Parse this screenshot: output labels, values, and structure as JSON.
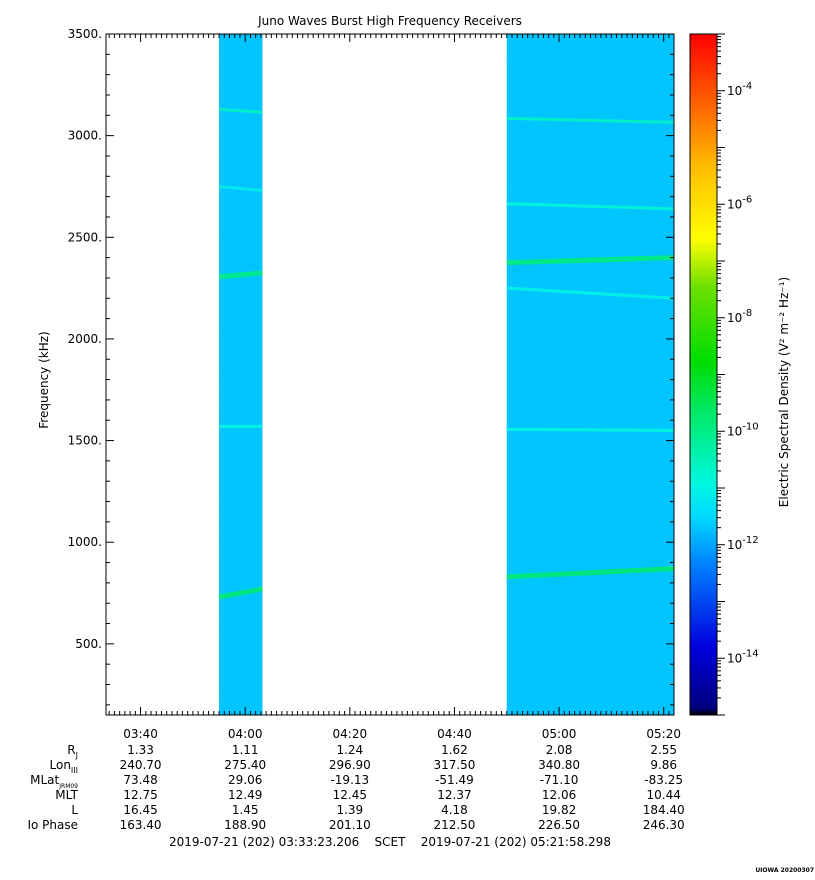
{
  "chart_data": {
    "type": "heatmap",
    "title": "Juno Waves Burst High Frequency Receivers",
    "ylabel": "Frequency (kHz)",
    "colorbar_label": "Electric Spectral Density (V² m⁻² Hz⁻¹)",
    "ylim": [
      150,
      3500
    ],
    "y_ticks": [
      500,
      1000,
      1500,
      2000,
      2500,
      3000,
      3500
    ],
    "y_tick_labels": [
      "500.",
      "1000.",
      "1500.",
      "2000.",
      "2500.",
      "3000.",
      "3500."
    ],
    "x_range_minutes": [
      213.39,
      321.97
    ],
    "x_ticks": [
      {
        "minute": 220,
        "label": "03:40"
      },
      {
        "minute": 240,
        "label": "04:00"
      },
      {
        "minute": 260,
        "label": "04:20"
      },
      {
        "minute": 280,
        "label": "04:40"
      },
      {
        "minute": 300,
        "label": "05:00"
      },
      {
        "minute": 320,
        "label": "05:20"
      }
    ],
    "colorbar": {
      "log10_min": -15,
      "log10_max": -3,
      "major_ticks": [
        -14,
        -12,
        -10,
        -8,
        -6,
        -4
      ],
      "tick_labels": [
        "10-14",
        "10-12",
        "10-10",
        "10-8",
        "10-6",
        "10-4"
      ]
    },
    "data_intervals": [
      {
        "start": "03:55",
        "end": "04:03",
        "start_min": 235.0,
        "end_min": 243.3
      },
      {
        "start": "04:50",
        "end": "05:21",
        "start_min": 290.0,
        "end_min": 321.9
      }
    ],
    "background_log10": -11.7,
    "emission_lines": [
      {
        "interval": 0,
        "f_start": 3130,
        "f_end": 3115,
        "log10": -10.6
      },
      {
        "interval": 0,
        "f_start": 2750,
        "f_end": 2730,
        "log10": -11.1
      },
      {
        "interval": 0,
        "f_start": 2305,
        "f_end": 2325,
        "log10": -10.0
      },
      {
        "interval": 0,
        "f_start": 1570,
        "f_end": 1570,
        "log10": -10.9
      },
      {
        "interval": 0,
        "f_start": 730,
        "f_end": 770,
        "log10": -9.8
      },
      {
        "interval": 1,
        "f_start": 3085,
        "f_end": 3065,
        "log10": -10.6
      },
      {
        "interval": 1,
        "f_start": 2665,
        "f_end": 2640,
        "log10": -10.8
      },
      {
        "interval": 1,
        "f_start": 2375,
        "f_end": 2400,
        "log10": -9.9
      },
      {
        "interval": 1,
        "f_start": 2250,
        "f_end": 2200,
        "log10": -11.0
      },
      {
        "interval": 1,
        "f_start": 1555,
        "f_end": 1550,
        "log10": -10.9
      },
      {
        "interval": 1,
        "f_start": 830,
        "f_end": 870,
        "log10": -9.8
      }
    ],
    "ephemeris": {
      "labels": [
        "R",
        "Lon",
        "MLat",
        "MLT",
        "L",
        "Io Phase"
      ],
      "subscripts": [
        "J",
        "III",
        "JRM09",
        "",
        "",
        ""
      ],
      "rows": [
        [
          "1.33",
          "1.11",
          "1.24",
          "1.62",
          "2.08",
          "2.55"
        ],
        [
          "240.70",
          "275.40",
          "296.90",
          "317.50",
          "340.80",
          "9.86"
        ],
        [
          "73.48",
          "29.06",
          "-19.13",
          "-51.49",
          "-71.10",
          "-83.25"
        ],
        [
          "12.75",
          "12.49",
          "12.45",
          "12.37",
          "12.06",
          "10.44"
        ],
        [
          "16.45",
          "1.45",
          "1.39",
          "4.18",
          "19.82",
          "184.40"
        ],
        [
          "163.40",
          "188.90",
          "201.10",
          "212.50",
          "226.50",
          "246.30"
        ]
      ]
    },
    "time_range_text": "2019-07-21 (202) 03:33:23.206    SCET    2019-07-21 (202) 05:21:58.298",
    "footer_mark": "UIOWA 20200307"
  }
}
